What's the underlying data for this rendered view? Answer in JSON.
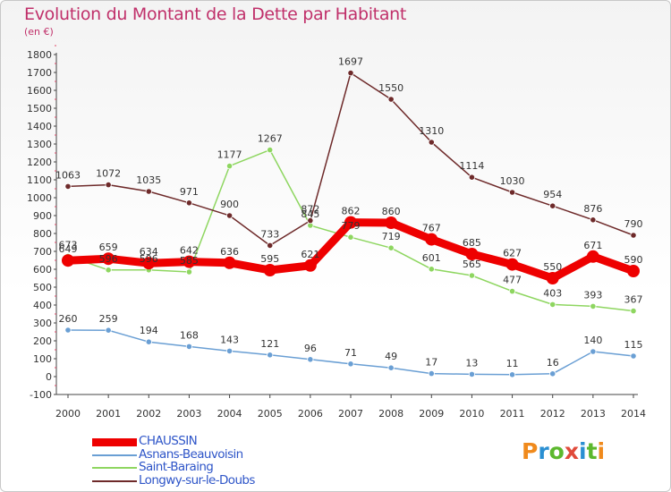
{
  "title": "Evolution du Montant de la Dette par Habitant",
  "subtitle": "(en €)",
  "logo": {
    "chars": [
      "P",
      "r",
      "o",
      "x",
      "i",
      "t",
      "i"
    ],
    "colors": [
      "#f08a1c",
      "#2a8fd2",
      "#5cb82e",
      "#e04a3a",
      "#2a8fd2",
      "#5cb82e",
      "#f08a1c"
    ]
  },
  "chart_data": {
    "type": "line",
    "x": [
      "2000",
      "2001",
      "2002",
      "2003",
      "2004",
      "2005",
      "2006",
      "2007",
      "2008",
      "2009",
      "2010",
      "2011",
      "2012",
      "2013",
      "2014"
    ],
    "ylim": [
      -100,
      1800
    ],
    "yticks": [
      -100,
      0,
      100,
      200,
      300,
      400,
      500,
      600,
      700,
      800,
      900,
      1000,
      1100,
      1200,
      1300,
      1400,
      1500,
      1600,
      1700,
      1800
    ],
    "grid": false,
    "legend": "bottom-left",
    "series": [
      {
        "name": "CHAUSSIN",
        "color": "#ee0000",
        "labelColor": "#333333",
        "width": 9,
        "dot": 7,
        "values": [
          649,
          659,
          634,
          642,
          636,
          595,
          621,
          862,
          860,
          767,
          685,
          627,
          550,
          671,
          590
        ]
      },
      {
        "name": "Asnans-Beauvoisin",
        "color": "#6a9fd4",
        "labelColor": "#333333",
        "width": 1.5,
        "dot": 3.2,
        "values": [
          260,
          259,
          194,
          168,
          143,
          121,
          96,
          71,
          49,
          17,
          13,
          11,
          16,
          140,
          115
        ]
      },
      {
        "name": "Saint-Baraing",
        "color": "#8ed660",
        "labelColor": "#333333",
        "width": 1.5,
        "dot": 3.2,
        "values": [
          673,
          596,
          596,
          585,
          1177,
          1267,
          845,
          779,
          719,
          601,
          565,
          477,
          403,
          393,
          367
        ]
      },
      {
        "name": "Longwy-sur-le-Doubs",
        "color": "#6e2a2a",
        "labelColor": "#333333",
        "width": 1.5,
        "dot": 3.2,
        "values": [
          1063,
          1072,
          1035,
          971,
          900,
          733,
          872,
          1697,
          1550,
          1310,
          1114,
          1030,
          954,
          876,
          790
        ]
      }
    ],
    "legendTextColors": [
      "#2e55c8",
      "#2e55c8",
      "#2e55c8",
      "#2e55c8"
    ]
  }
}
